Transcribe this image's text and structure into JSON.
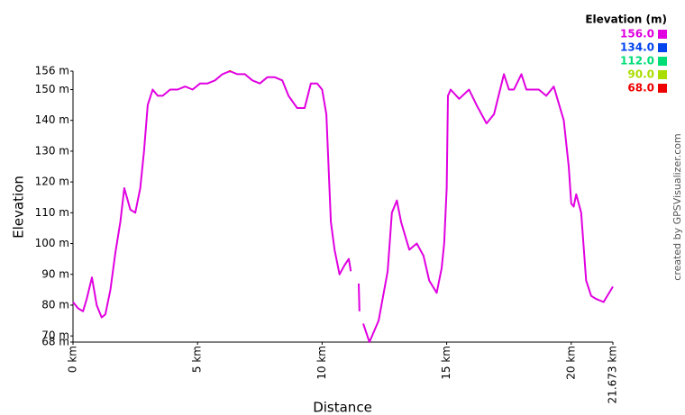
{
  "chart_data": {
    "type": "line",
    "y_label": "Elevation",
    "x_label": "Distance",
    "credit": "created by GPSVisualizer.com",
    "legend_title": "Elevation (m)",
    "legend": [
      {
        "value": 156,
        "label": "156.0",
        "color": "#e000e0"
      },
      {
        "value": 134,
        "label": "134.0",
        "color": "#0044ee"
      },
      {
        "value": 112,
        "label": "112.0",
        "color": "#00dd77"
      },
      {
        "value": 90,
        "label": "90.0",
        "color": "#aadd00"
      },
      {
        "value": 68,
        "label": "68.0",
        "color": "#ee0000"
      }
    ],
    "x": [
      0,
      0.2,
      0.4,
      0.55,
      0.76,
      0.95,
      1.15,
      1.3,
      1.5,
      1.7,
      1.9,
      2.06,
      2.3,
      2.5,
      2.7,
      2.85,
      3.0,
      3.2,
      3.4,
      3.6,
      3.9,
      4.2,
      4.5,
      4.8,
      5.1,
      5.4,
      5.7,
      6.0,
      6.3,
      6.6,
      6.9,
      7.2,
      7.5,
      7.8,
      8.1,
      8.4,
      8.65,
      9.0,
      9.3,
      9.55,
      9.8,
      10.0,
      10.17,
      10.35,
      10.5,
      10.7,
      10.9,
      11.07,
      11.15,
      11.2,
      11.47,
      11.5,
      11.54,
      11.65,
      11.9,
      12.27,
      12.63,
      12.8,
      13.0,
      13.17,
      13.5,
      13.8,
      14.07,
      14.3,
      14.6,
      14.8,
      14.9,
      15.0,
      15.05,
      15.16,
      15.5,
      15.9,
      16.2,
      16.6,
      16.9,
      17.3,
      17.5,
      17.7,
      18.0,
      18.2,
      18.7,
      19.0,
      19.3,
      19.7,
      19.9,
      20.0,
      20.1,
      20.2,
      20.4,
      20.6,
      20.8,
      21.0,
      21.3,
      21.673
    ],
    "values": [
      81,
      79,
      78,
      82,
      89,
      80,
      76,
      77,
      85,
      97,
      107,
      118,
      111,
      110,
      118,
      130,
      145,
      150,
      148,
      148,
      150,
      150,
      151,
      150,
      152,
      152,
      153,
      155,
      156,
      155,
      155,
      153,
      152,
      154,
      154,
      153,
      148,
      144,
      144,
      152,
      152,
      150,
      142,
      107,
      98,
      90,
      93,
      95,
      91,
      null,
      87,
      78,
      null,
      74,
      68,
      75,
      91,
      110,
      114,
      107,
      98,
      100,
      96,
      88,
      84,
      92,
      100,
      118,
      148,
      150,
      147,
      150,
      145,
      139,
      142,
      155,
      150,
      150,
      155,
      150,
      150,
      148,
      151,
      140,
      125,
      113,
      112,
      116,
      110,
      88,
      83,
      82,
      81,
      86
    ],
    "xlim": [
      0,
      21.673
    ],
    "ylim": [
      68,
      156
    ],
    "xticks": [
      {
        "value": 0,
        "label": "0 km"
      },
      {
        "value": 5,
        "label": "5 km"
      },
      {
        "value": 10,
        "label": "10 km"
      },
      {
        "value": 15,
        "label": "15 km"
      },
      {
        "value": 20,
        "label": "20 km"
      },
      {
        "value": 21.673,
        "label": "21.673 km"
      }
    ],
    "yticks": [
      {
        "value": 68,
        "label": "68 m"
      },
      {
        "value": 70,
        "label": "70 m"
      },
      {
        "value": 80,
        "label": "80 m"
      },
      {
        "value": 90,
        "label": "90 m"
      },
      {
        "value": 100,
        "label": "100 m"
      },
      {
        "value": 110,
        "label": "110 m"
      },
      {
        "value": 120,
        "label": "120 m"
      },
      {
        "value": 130,
        "label": "130 m"
      },
      {
        "value": 140,
        "label": "140 m"
      },
      {
        "value": 150,
        "label": "150 m"
      },
      {
        "value": 156,
        "label": "156 m"
      }
    ]
  }
}
